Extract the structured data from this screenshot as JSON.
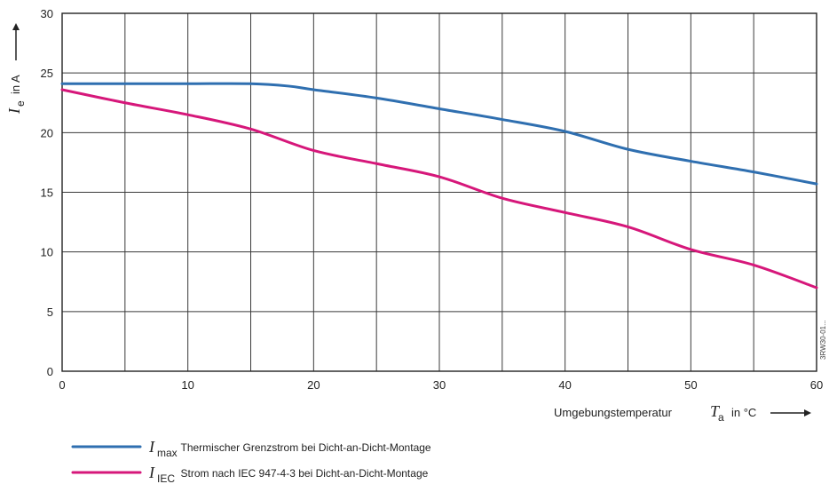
{
  "chart_data": {
    "type": "line",
    "xlim": [
      0,
      60
    ],
    "ylim": [
      0,
      30
    ],
    "x_ticks": [
      "0",
      "10",
      "20",
      "30",
      "40",
      "50",
      "60"
    ],
    "y_ticks": [
      "0",
      "5",
      "10",
      "15",
      "20",
      "25",
      "30"
    ],
    "grid": true,
    "y_axis_label": {
      "symbol": "I",
      "subscript": "e",
      "text": "in A"
    },
    "x_axis_label": {
      "text": "Umgebungstemperatur",
      "symbol": "T",
      "subscript": "a",
      "unit": "in °C"
    },
    "legend_position": "bottom-left",
    "series": [
      {
        "symbol": "I",
        "subscript": "max",
        "name": "Thermischer Grenzstrom bei Dicht-an-Dicht-Montage",
        "color": "#2f6fb0",
        "points": [
          [
            0,
            24.1
          ],
          [
            5,
            24.1
          ],
          [
            10,
            24.1
          ],
          [
            15,
            24.1
          ],
          [
            18,
            23.9
          ],
          [
            20,
            23.6
          ],
          [
            25,
            22.9
          ],
          [
            30,
            22.0
          ],
          [
            35,
            21.1
          ],
          [
            40,
            20.1
          ],
          [
            45,
            18.6
          ],
          [
            50,
            17.6
          ],
          [
            55,
            16.7
          ],
          [
            60,
            15.7
          ]
        ]
      },
      {
        "symbol": "I",
        "subscript": "IEC",
        "name": "Strom nach IEC 947-4-3 bei Dicht-an-Dicht-Montage",
        "color": "#d6177a",
        "points": [
          [
            0,
            23.6
          ],
          [
            5,
            22.5
          ],
          [
            10,
            21.5
          ],
          [
            15,
            20.3
          ],
          [
            20,
            18.5
          ],
          [
            25,
            17.4
          ],
          [
            30,
            16.3
          ],
          [
            35,
            14.5
          ],
          [
            40,
            13.3
          ],
          [
            45,
            12.1
          ],
          [
            50,
            10.2
          ],
          [
            55,
            8.9
          ],
          [
            60,
            7.0
          ]
        ]
      }
    ],
    "figure_code": "3RW30-01..."
  }
}
